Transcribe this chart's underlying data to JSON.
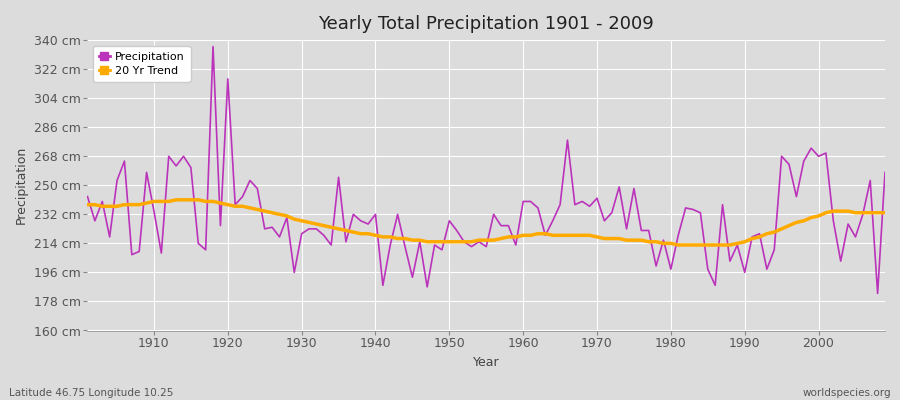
{
  "title": "Yearly Total Precipitation 1901 - 2009",
  "xlabel": "Year",
  "ylabel": "Precipitation",
  "footer_left": "Latitude 46.75 Longitude 10.25",
  "footer_right": "worldspecies.org",
  "line_color": "#bb33bb",
  "trend_color": "#ffaa00",
  "background_color": "#dcdcdc",
  "plot_bg_color": "#dcdcdc",
  "ylim": [
    160,
    340
  ],
  "yticks": [
    160,
    178,
    196,
    214,
    232,
    250,
    268,
    286,
    304,
    322,
    340
  ],
  "xlim": [
    1901,
    2009
  ],
  "xticks": [
    1910,
    1920,
    1930,
    1940,
    1950,
    1960,
    1970,
    1980,
    1990,
    2000
  ],
  "years": [
    1901,
    1902,
    1903,
    1904,
    1905,
    1906,
    1907,
    1908,
    1909,
    1910,
    1911,
    1912,
    1913,
    1914,
    1915,
    1916,
    1917,
    1918,
    1919,
    1920,
    1921,
    1922,
    1923,
    1924,
    1925,
    1926,
    1927,
    1928,
    1929,
    1930,
    1931,
    1932,
    1933,
    1934,
    1935,
    1936,
    1937,
    1938,
    1939,
    1940,
    1941,
    1942,
    1943,
    1944,
    1945,
    1946,
    1947,
    1948,
    1949,
    1950,
    1951,
    1952,
    1953,
    1954,
    1955,
    1956,
    1957,
    1958,
    1959,
    1960,
    1961,
    1962,
    1963,
    1964,
    1965,
    1966,
    1967,
    1968,
    1969,
    1970,
    1971,
    1972,
    1973,
    1974,
    1975,
    1976,
    1977,
    1978,
    1979,
    1980,
    1981,
    1982,
    1983,
    1984,
    1985,
    1986,
    1987,
    1988,
    1989,
    1990,
    1991,
    1992,
    1993,
    1994,
    1995,
    1996,
    1997,
    1998,
    1999,
    2000,
    2001,
    2002,
    2003,
    2004,
    2005,
    2006,
    2007,
    2008,
    2009
  ],
  "precip": [
    243,
    228,
    240,
    218,
    253,
    265,
    207,
    209,
    258,
    234,
    208,
    268,
    262,
    268,
    261,
    214,
    210,
    336,
    225,
    316,
    238,
    243,
    253,
    248,
    223,
    224,
    218,
    230,
    196,
    220,
    223,
    223,
    219,
    213,
    255,
    215,
    232,
    228,
    226,
    232,
    188,
    213,
    232,
    212,
    193,
    215,
    187,
    213,
    210,
    228,
    222,
    215,
    212,
    215,
    212,
    232,
    225,
    225,
    213,
    240,
    240,
    236,
    219,
    228,
    238,
    278,
    238,
    240,
    237,
    242,
    228,
    233,
    249,
    223,
    248,
    222,
    222,
    200,
    216,
    198,
    219,
    236,
    235,
    233,
    198,
    188,
    238,
    203,
    213,
    196,
    218,
    220,
    198,
    210,
    268,
    263,
    243,
    265,
    273,
    268,
    270,
    228,
    203,
    226,
    218,
    232,
    253,
    183,
    258
  ],
  "trend": [
    238,
    238,
    237,
    237,
    237,
    238,
    238,
    238,
    239,
    240,
    240,
    240,
    241,
    241,
    241,
    241,
    240,
    240,
    239,
    238,
    237,
    237,
    236,
    235,
    234,
    233,
    232,
    231,
    229,
    228,
    227,
    226,
    225,
    224,
    223,
    222,
    221,
    220,
    220,
    219,
    218,
    218,
    217,
    217,
    216,
    216,
    215,
    215,
    215,
    215,
    215,
    215,
    215,
    216,
    216,
    216,
    217,
    218,
    218,
    219,
    219,
    220,
    220,
    219,
    219,
    219,
    219,
    219,
    219,
    218,
    217,
    217,
    217,
    216,
    216,
    216,
    215,
    215,
    214,
    214,
    213,
    213,
    213,
    213,
    213,
    213,
    213,
    213,
    214,
    215,
    217,
    218,
    220,
    221,
    223,
    225,
    227,
    228,
    230,
    231,
    233,
    234,
    234,
    234,
    233,
    233,
    233,
    233,
    233
  ]
}
